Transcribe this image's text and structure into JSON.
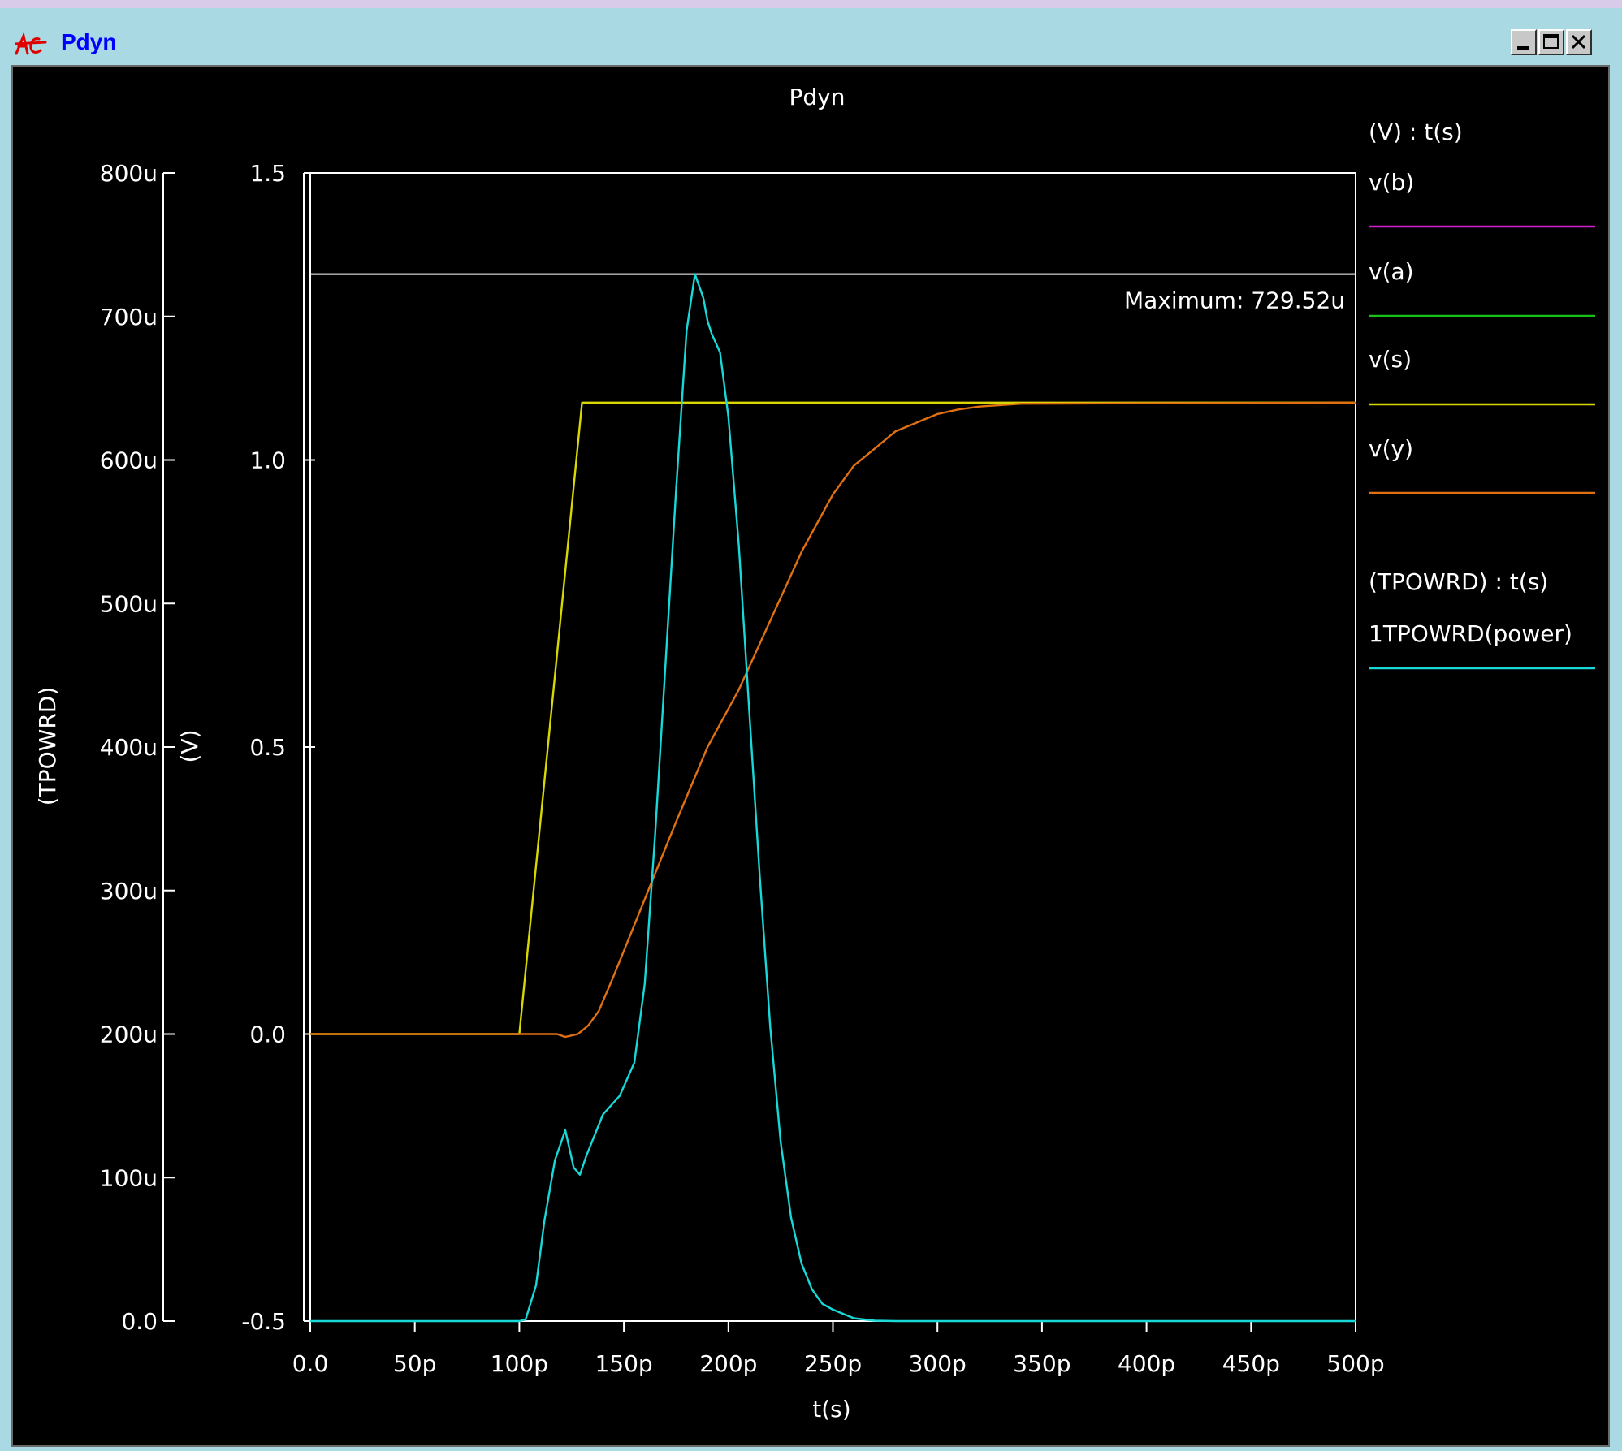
{
  "window": {
    "title": "Pdyn",
    "buttons": {
      "minimize": "minimize",
      "maximize": "maximize",
      "close": "close"
    }
  },
  "chart_data": {
    "type": "line",
    "title": "Pdyn",
    "xlabel": "t(s)",
    "xlim": [
      0,
      5e-10
    ],
    "x_ticks": [
      {
        "v": 0,
        "label": "0.0"
      },
      {
        "v": 5e-11,
        "label": "50p"
      },
      {
        "v": 1e-10,
        "label": "100p"
      },
      {
        "v": 1.5e-10,
        "label": "150p"
      },
      {
        "v": 2e-10,
        "label": "200p"
      },
      {
        "v": 2.5e-10,
        "label": "250p"
      },
      {
        "v": 3e-10,
        "label": "300p"
      },
      {
        "v": 3.5e-10,
        "label": "350p"
      },
      {
        "v": 4e-10,
        "label": "400p"
      },
      {
        "v": 4.5e-10,
        "label": "450p"
      },
      {
        "v": 5e-10,
        "label": "500p"
      }
    ],
    "y_left_outer": {
      "label": "(TPOWRD)",
      "ylim": [
        0,
        0.0008
      ],
      "ticks": [
        {
          "v": 0,
          "label": "0.0"
        },
        {
          "v": 0.0001,
          "label": "100u"
        },
        {
          "v": 0.0002,
          "label": "200u"
        },
        {
          "v": 0.0003,
          "label": "300u"
        },
        {
          "v": 0.0004,
          "label": "400u"
        },
        {
          "v": 0.0005,
          "label": "500u"
        },
        {
          "v": 0.0006,
          "label": "600u"
        },
        {
          "v": 0.0007,
          "label": "700u"
        },
        {
          "v": 0.0008,
          "label": "800u"
        }
      ]
    },
    "y_left_inner": {
      "label": "(V)",
      "ylim": [
        -0.5,
        1.5
      ],
      "ticks": [
        {
          "v": -0.5,
          "label": "-0.5"
        },
        {
          "v": 0.0,
          "label": "0.0"
        },
        {
          "v": 0.5,
          "label": "0.5"
        },
        {
          "v": 1.0,
          "label": "1.0"
        },
        {
          "v": 1.5,
          "label": "1.5"
        }
      ]
    },
    "annotation": {
      "text": "Maximum: 729.52u",
      "value": 0.00072952,
      "axis": "power"
    },
    "legend": {
      "placement": "right",
      "group1_header": "(V) : t(s)",
      "group2_header": "(TPOWRD) : t(s)"
    },
    "series": [
      {
        "name": "v(b)",
        "color": "#d020d0",
        "axis": "V",
        "x": [],
        "y": []
      },
      {
        "name": "v(a)",
        "color": "#18c018",
        "axis": "V",
        "x": [],
        "y": []
      },
      {
        "name": "v(s)",
        "color": "#d8d800",
        "axis": "V",
        "x": [
          0,
          1e-10,
          1.3e-10,
          5e-10
        ],
        "y": [
          0.0,
          0.0,
          1.1,
          1.1
        ]
      },
      {
        "name": "v(y)",
        "color": "#e07010",
        "axis": "V",
        "x": [
          0,
          1.18e-10,
          1.22e-10,
          1.28e-10,
          1.33e-10,
          1.38e-10,
          1.45e-10,
          1.55e-10,
          1.65e-10,
          1.75e-10,
          1.9e-10,
          2.05e-10,
          2.2e-10,
          2.35e-10,
          2.5e-10,
          2.6e-10,
          2.7e-10,
          2.8e-10,
          2.9e-10,
          3e-10,
          3.1e-10,
          3.2e-10,
          3.4e-10,
          5e-10
        ],
        "y": [
          0.0,
          0.0,
          -0.005,
          0.0,
          0.015,
          0.04,
          0.1,
          0.19,
          0.28,
          0.37,
          0.5,
          0.6,
          0.72,
          0.84,
          0.94,
          0.99,
          1.02,
          1.05,
          1.065,
          1.08,
          1.088,
          1.093,
          1.098,
          1.1
        ]
      },
      {
        "name": "1TPOWRD(power)",
        "color": "#18d8d8",
        "axis": "power",
        "x": [
          0,
          1e-10,
          1.03e-10,
          1.08e-10,
          1.12e-10,
          1.17e-10,
          1.22e-10,
          1.26e-10,
          1.29e-10,
          1.32e-10,
          1.4e-10,
          1.48e-10,
          1.55e-10,
          1.6e-10,
          1.65e-10,
          1.7e-10,
          1.75e-10,
          1.8e-10,
          1.84e-10,
          1.88e-10,
          1.9e-10,
          1.92e-10,
          1.96e-10,
          2e-10,
          2.05e-10,
          2.1e-10,
          2.15e-10,
          2.2e-10,
          2.25e-10,
          2.3e-10,
          2.35e-10,
          2.4e-10,
          2.45e-10,
          2.5e-10,
          2.6e-10,
          2.7e-10,
          2.8e-10,
          2.9e-10,
          5e-10
        ],
        "y": [
          0,
          0,
          1e-06,
          2.5e-05,
          7e-05,
          0.000112,
          0.000133,
          0.000107,
          0.000102,
          0.000115,
          0.000144,
          0.000157,
          0.00018,
          0.000235,
          0.00034,
          0.00046,
          0.00058,
          0.00069,
          0.00072952,
          0.000713,
          0.000697,
          0.000688,
          0.000675,
          0.00063,
          0.00054,
          0.000425,
          0.00031,
          0.000205,
          0.000125,
          7.2e-05,
          4e-05,
          2.2e-05,
          1.2e-05,
          8e-06,
          2e-06,
          3e-07,
          0,
          0,
          0
        ]
      }
    ]
  }
}
